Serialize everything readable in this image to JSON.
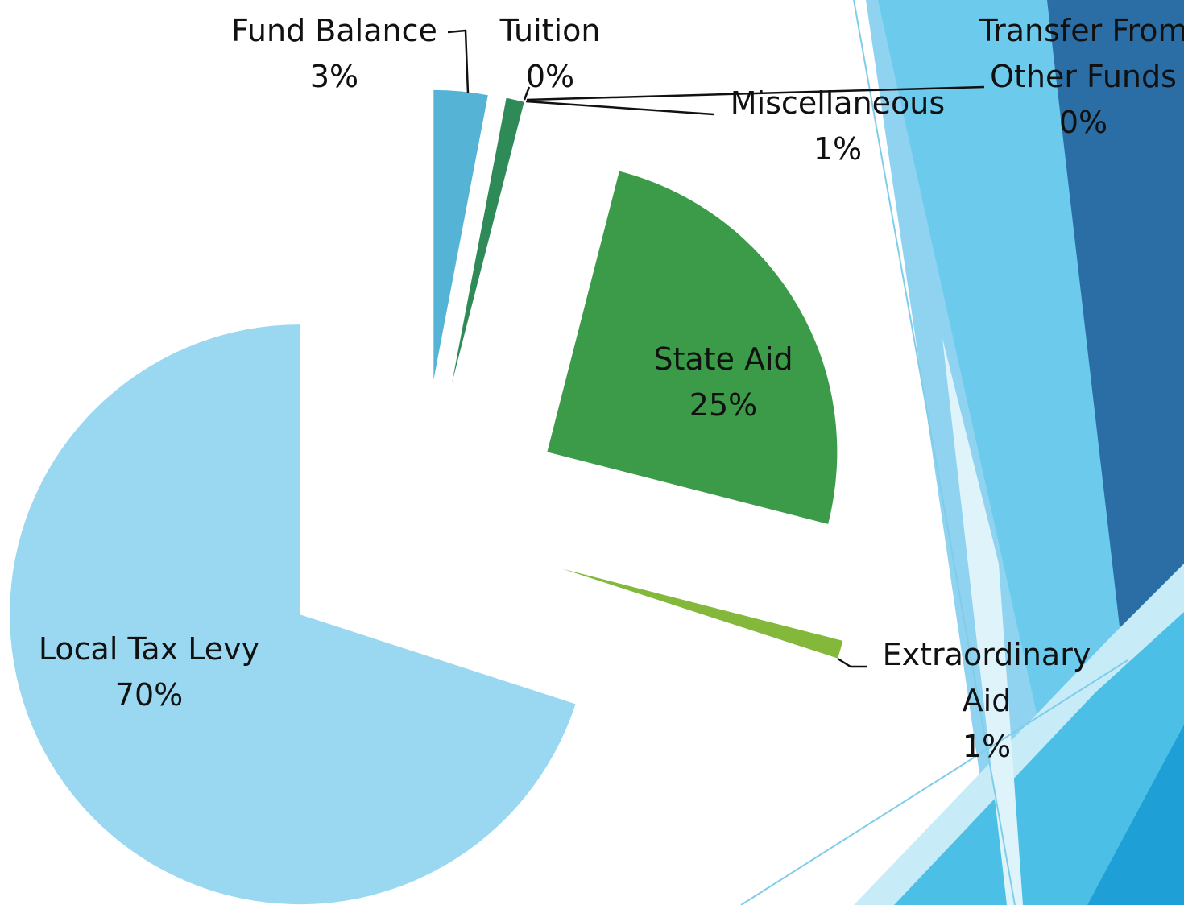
{
  "chart_data": {
    "type": "pie",
    "categories": [
      "Fund Balance",
      "Tuition",
      "Miscellaneous",
      "Transfer From Other Funds",
      "State Aid",
      "Extraordinary Aid",
      "Local Tax Levy"
    ],
    "values": [
      3,
      0,
      1,
      0,
      25,
      1,
      70
    ],
    "value_labels": [
      "3%",
      "0%",
      "1%",
      "0%",
      "25%",
      "1%",
      "70%"
    ],
    "colors": [
      "#55b3d6",
      "#2e75b6",
      "#2e8b57",
      "#1f5f9f",
      "#3c9b48",
      "#84b83a",
      "#9ad7f0"
    ],
    "exploded": true
  }
}
